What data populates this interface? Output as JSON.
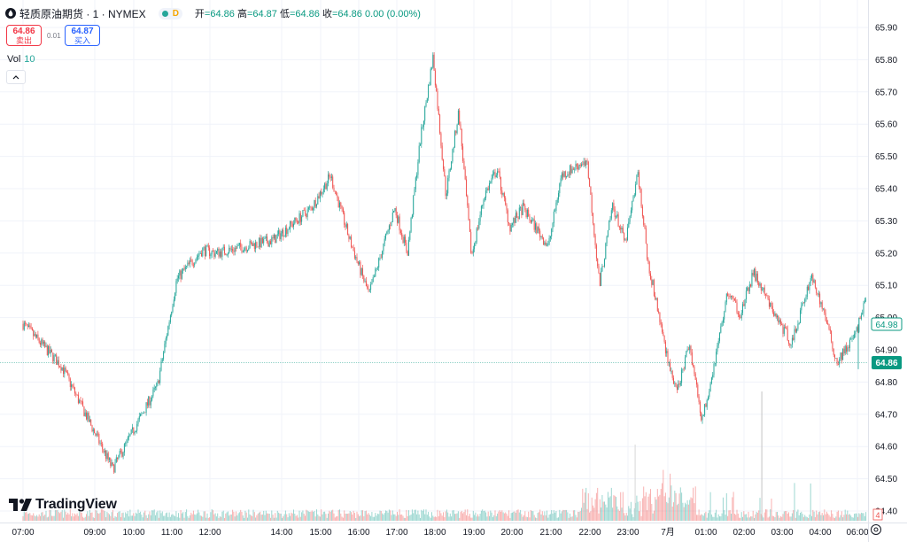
{
  "header": {
    "symbol": "轻质原油期货 · 1 · NYMEX",
    "status_letter": "D",
    "open_label": "开",
    "open": "=64.86",
    "high_label": "高",
    "high": "=64.87",
    "low_label": "低",
    "low": "=64.86",
    "close_label": "收",
    "close": "=64.86",
    "change": "0.00 (0.00%)"
  },
  "trade": {
    "sell_price": "64.86",
    "sell_label": "卖出",
    "spread": "0.01",
    "buy_price": "64.87",
    "buy_label": "买入"
  },
  "volume": {
    "label": "Vol",
    "value": "10"
  },
  "price_axis": {
    "ticks": [
      "65.90",
      "65.80",
      "65.70",
      "65.60",
      "65.50",
      "65.40",
      "65.30",
      "65.20",
      "65.10",
      "65.00",
      "64.90",
      "64.80",
      "64.70",
      "64.60",
      "64.50",
      "64.40"
    ],
    "last_price_label": "64.86",
    "secondary_price_label": "64.98",
    "volume_axis_label": "4"
  },
  "time_axis": {
    "labels": [
      "07:00",
      "09:00",
      "10:00",
      "11:00",
      "12:00",
      "14:00",
      "15:00",
      "16:00",
      "17:00",
      "18:00",
      "19:00",
      "20:00",
      "21:00",
      "22:00",
      "23:00",
      "7月",
      "01:00",
      "02:00",
      "03:00",
      "04:00",
      "06:00"
    ]
  },
  "branding": {
    "logo_text": "TradingView"
  },
  "colors": {
    "up": "#26a69a",
    "down": "#ef5350",
    "last_price": "#089981",
    "grid": "#f0f3fa",
    "sell": "#f23645",
    "buy": "#2962ff"
  },
  "icons": {
    "symbol_icon": "oil-drop-icon",
    "collapse_icon": "chevron-up-icon",
    "settings_icon": "gear-icon"
  },
  "chart_data": {
    "type": "candlestick",
    "y_range": [
      64.4,
      65.9
    ],
    "last_price": 64.86,
    "key_points": [
      {
        "t": "06:00",
        "close": 64.98
      },
      {
        "t": "07:00",
        "close": 64.85
      },
      {
        "t": "08:20",
        "close": 64.53
      },
      {
        "t": "09:30",
        "close": 64.79
      },
      {
        "t": "10:00",
        "close": 65.12
      },
      {
        "t": "10:40",
        "close": 65.21
      },
      {
        "t": "11:00",
        "close": 65.2
      },
      {
        "t": "12:30",
        "close": 65.24
      },
      {
        "t": "13:30",
        "close": 65.34
      },
      {
        "t": "14:00",
        "close": 65.44
      },
      {
        "t": "14:30",
        "close": 65.24
      },
      {
        "t": "15:00",
        "close": 65.07
      },
      {
        "t": "15:40",
        "close": 65.34
      },
      {
        "t": "16:00",
        "close": 65.2
      },
      {
        "t": "16:20",
        "close": 65.55
      },
      {
        "t": "16:40",
        "close": 65.81
      },
      {
        "t": "17:00",
        "close": 65.38
      },
      {
        "t": "17:20",
        "close": 65.64
      },
      {
        "t": "17:40",
        "close": 65.19
      },
      {
        "t": "18:00",
        "close": 65.38
      },
      {
        "t": "18:20",
        "close": 65.46
      },
      {
        "t": "18:40",
        "close": 65.28
      },
      {
        "t": "19:00",
        "close": 65.34
      },
      {
        "t": "19:40",
        "close": 65.22
      },
      {
        "t": "20:00",
        "close": 65.44
      },
      {
        "t": "20:40",
        "close": 65.49
      },
      {
        "t": "21:00",
        "close": 65.1
      },
      {
        "t": "21:20",
        "close": 65.35
      },
      {
        "t": "21:40",
        "close": 65.23
      },
      {
        "t": "22:00",
        "close": 65.45
      },
      {
        "t": "22:15",
        "close": 65.18
      },
      {
        "t": "22:40",
        "close": 64.93
      },
      {
        "t": "23:00",
        "close": 64.76
      },
      {
        "t": "23:20",
        "close": 64.92
      },
      {
        "t": "23:40",
        "close": 64.68
      },
      {
        "t": "24:00",
        "close": 64.87
      },
      {
        "t": "00:20",
        "close": 65.08
      },
      {
        "t": "00:40",
        "close": 65.01
      },
      {
        "t": "01:00",
        "close": 65.14
      },
      {
        "t": "01:30",
        "close": 65.02
      },
      {
        "t": "02:00",
        "close": 64.92
      },
      {
        "t": "02:30",
        "close": 65.13
      },
      {
        "t": "02:50",
        "close": 65.02
      },
      {
        "t": "03:10",
        "close": 64.86
      },
      {
        "t": "03:40",
        "close": 64.95
      },
      {
        "t": "04:00",
        "close": 65.09
      },
      {
        "t": "04:30",
        "close": 64.96
      },
      {
        "t": "05:00",
        "close": 64.95
      },
      {
        "t": "05:20",
        "close": 64.86
      }
    ]
  }
}
